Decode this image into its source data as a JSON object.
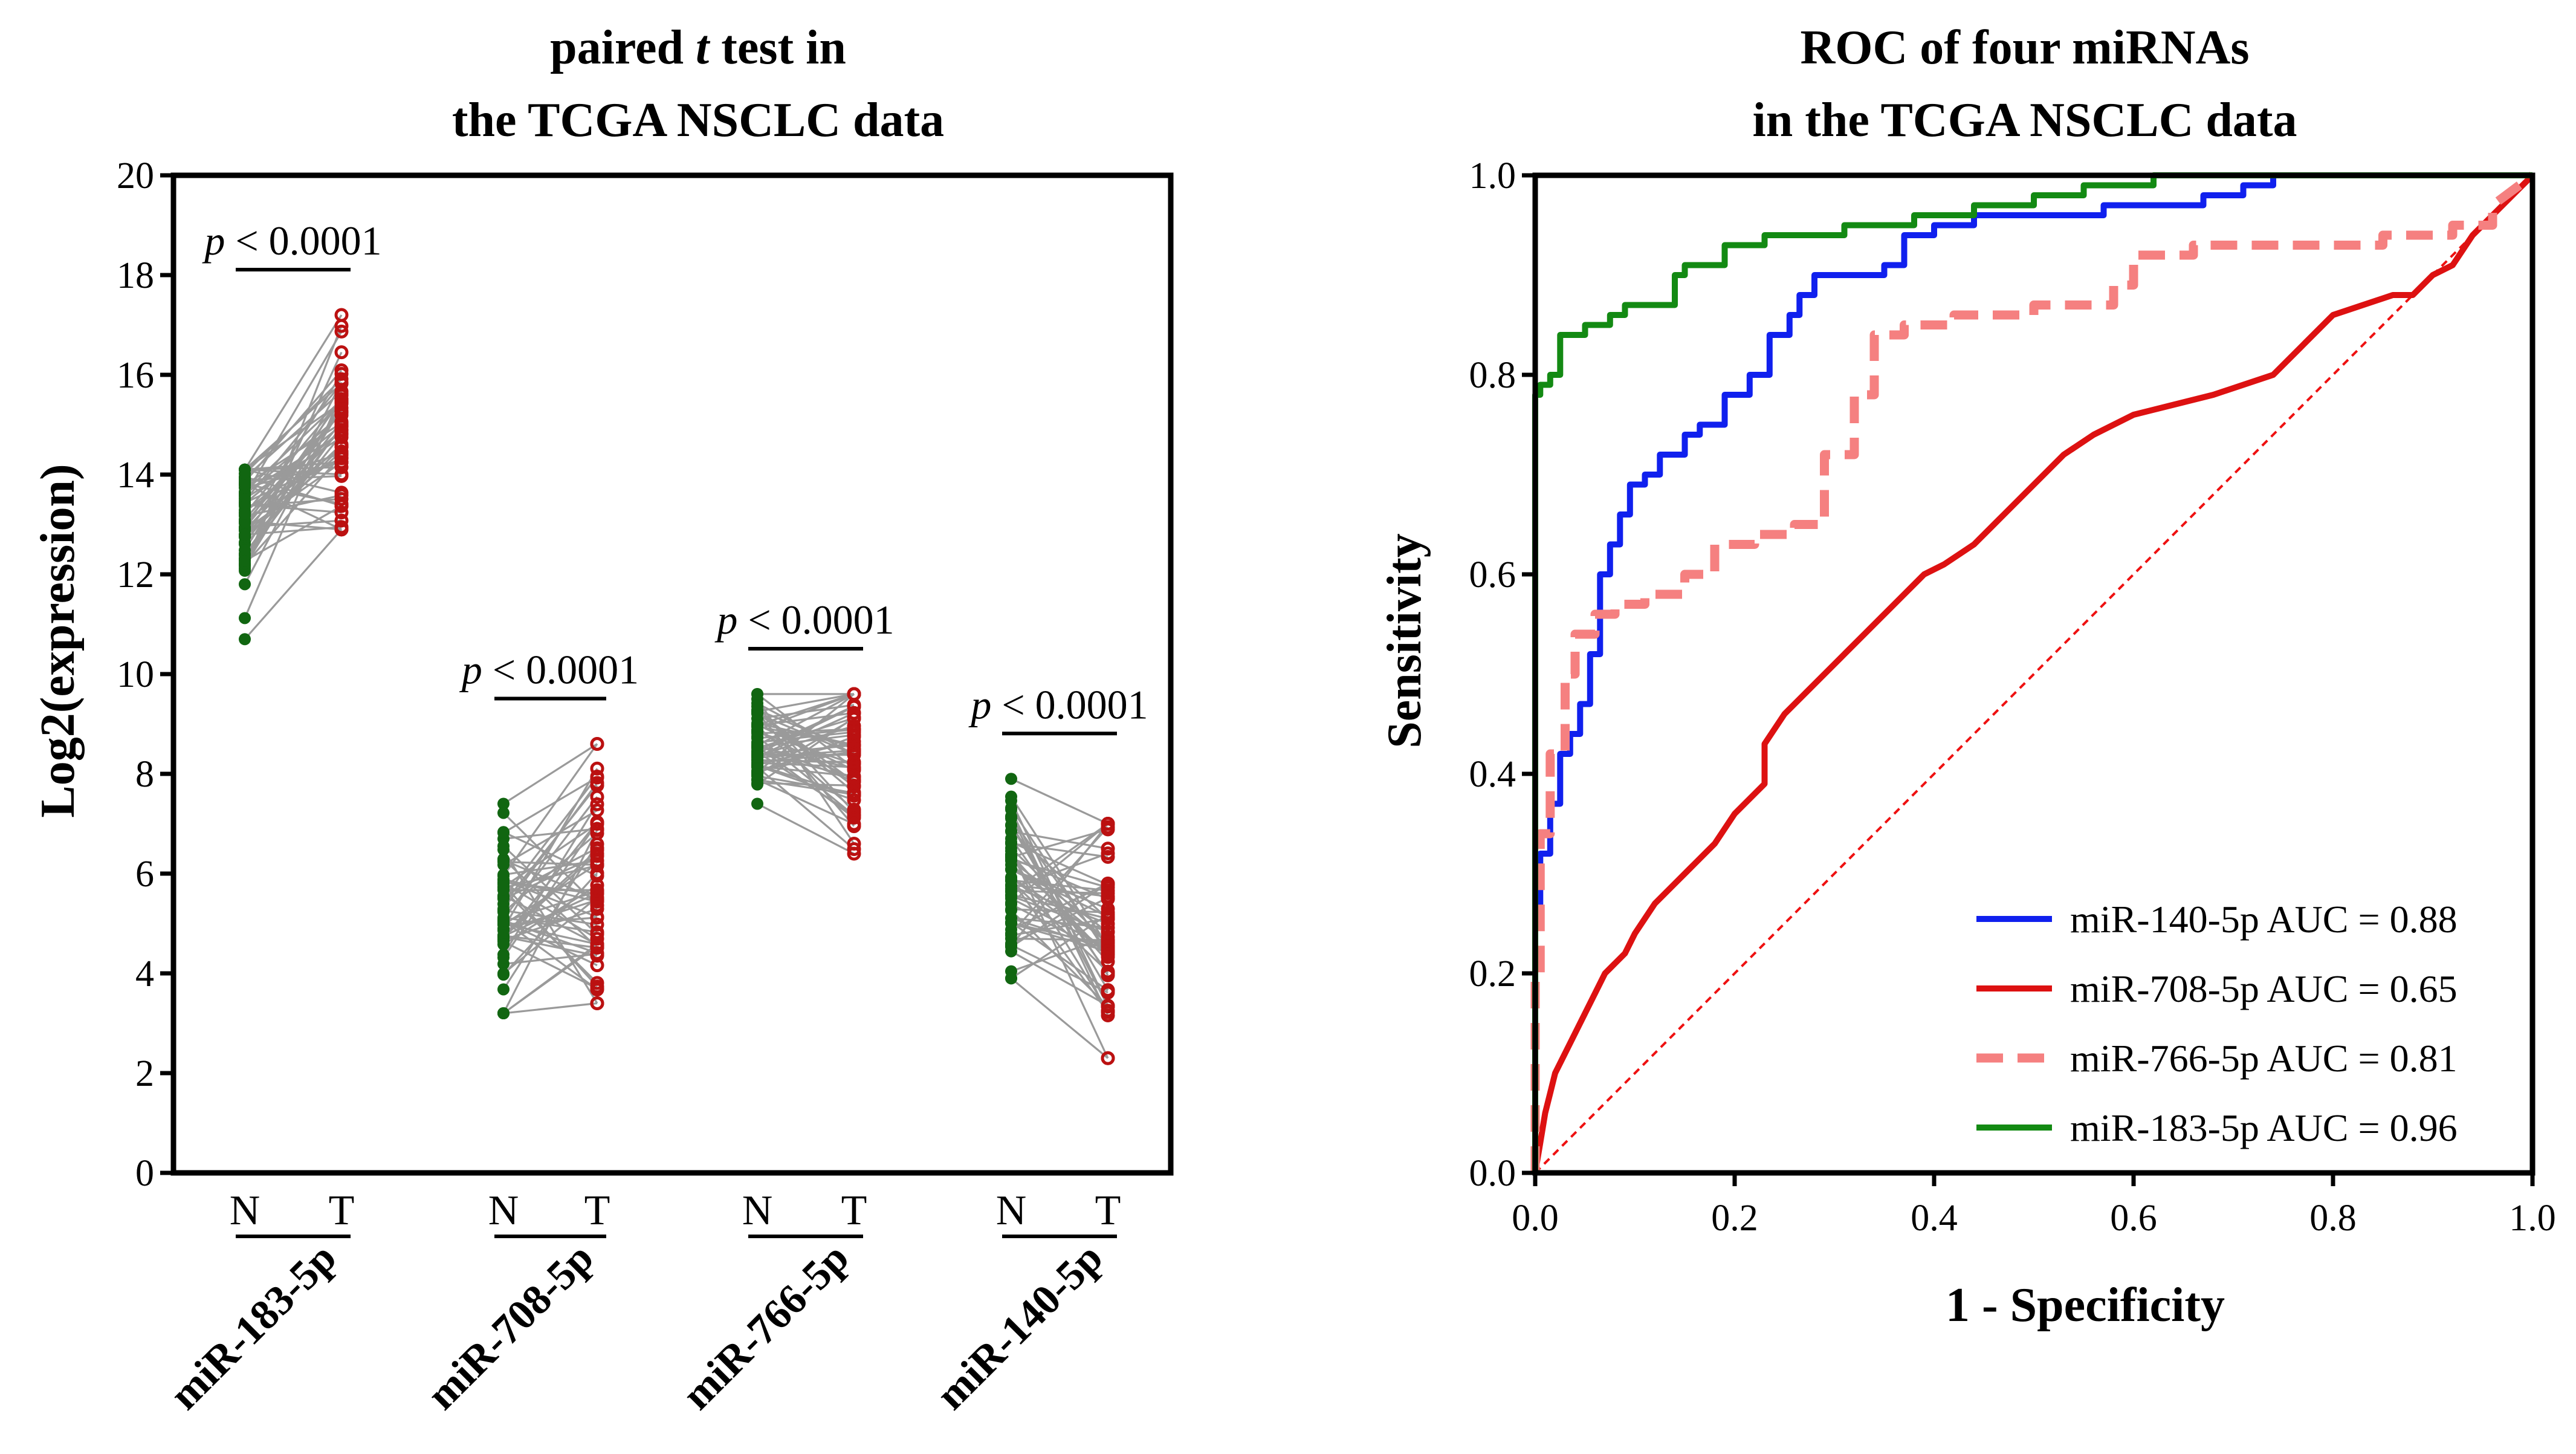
{
  "chart_data": [
    {
      "type": "scatter",
      "subtype": "paired-dot",
      "title_line1_prefix": "paired ",
      "title_line1_italic": "t",
      "title_line1_suffix": " test in",
      "title_line2": "the TCGA NSCLC data",
      "xlabel": "",
      "ylabel": "Log2(expression)",
      "ylim": [
        0,
        20
      ],
      "yticks": [
        "0",
        "2",
        "4",
        "6",
        "8",
        "10",
        "12",
        "14",
        "16",
        "18",
        "20"
      ],
      "normal_color": "#116611",
      "tumor_color": "#bb1111",
      "line_color": "#9a9a9a",
      "groups": [
        {
          "name": "miR-183-5p",
          "normal_label": "N",
          "tumor_label": "T",
          "p_label_italic": "p",
          "p_label_rest": " < 0.0001",
          "normal_range": [
            10.7,
            14.1
          ],
          "tumor_range": [
            12.9,
            17.2
          ],
          "normal_mean": 13.2,
          "tumor_mean": 14.7
        },
        {
          "name": "miR-708-5p",
          "normal_label": "N",
          "tumor_label": "T",
          "p_label_italic": "p",
          "p_label_rest": " < 0.0001",
          "normal_range": [
            3.2,
            7.4
          ],
          "tumor_range": [
            3.4,
            8.6
          ],
          "normal_mean": 5.2,
          "tumor_mean": 5.8
        },
        {
          "name": "miR-766-5p",
          "normal_label": "N",
          "tumor_label": "T",
          "p_label_italic": "p",
          "p_label_rest": " < 0.0001",
          "normal_range": [
            7.4,
            9.6
          ],
          "tumor_range": [
            6.4,
            9.6
          ],
          "normal_mean": 8.7,
          "tumor_mean": 8.2
        },
        {
          "name": "miR-140-5p",
          "normal_label": "N",
          "tumor_label": "T",
          "p_label_italic": "p",
          "p_label_rest": " < 0.0001",
          "normal_range": [
            3.9,
            7.9
          ],
          "tumor_range": [
            2.3,
            7.0
          ],
          "normal_mean": 5.9,
          "tumor_mean": 4.9
        }
      ]
    },
    {
      "type": "line",
      "title_line1": "ROC of four miRNAs",
      "title_line2": "in the TCGA NSCLC data",
      "xlabel": "1 - Specificity",
      "ylabel": "Sensitivity",
      "xlim": [
        0,
        1
      ],
      "ylim": [
        0,
        1
      ],
      "xticks": [
        "0.0",
        "0.2",
        "0.4",
        "0.6",
        "0.8",
        "1.0"
      ],
      "yticks": [
        "0.0",
        "0.2",
        "0.4",
        "0.6",
        "0.8",
        "1.0"
      ],
      "legend_position": "bottom-right",
      "series": [
        {
          "name": "miR-140-5p AUC = 0.88",
          "color": "#1020ee",
          "dashed": false,
          "x": [
            0,
            0,
            0.005,
            0.005,
            0.015,
            0.015,
            0.025,
            0.025,
            0.035,
            0.035,
            0.045,
            0.045,
            0.055,
            0.055,
            0.065,
            0.065,
            0.075,
            0.075,
            0.085,
            0.085,
            0.095,
            0.095,
            0.11,
            0.11,
            0.125,
            0.125,
            0.15,
            0.15,
            0.165,
            0.165,
            0.19,
            0.19,
            0.2,
            0.2,
            0.215,
            0.215,
            0.235,
            0.235,
            0.255,
            0.255,
            0.265,
            0.265,
            0.28,
            0.28,
            0.35,
            0.35,
            0.37,
            0.37,
            0.4,
            0.4,
            0.44,
            0.44,
            0.52,
            0.52,
            0.57,
            0.57,
            0.67,
            0.67,
            0.71,
            0.71,
            0.74,
            0.74,
            0.76,
            0.76,
            1.0
          ],
          "y": [
            0,
            0.26,
            0.26,
            0.32,
            0.32,
            0.37,
            0.37,
            0.42,
            0.42,
            0.44,
            0.44,
            0.47,
            0.47,
            0.52,
            0.52,
            0.6,
            0.6,
            0.63,
            0.63,
            0.66,
            0.66,
            0.69,
            0.69,
            0.7,
            0.7,
            0.72,
            0.72,
            0.74,
            0.74,
            0.75,
            0.75,
            0.78,
            0.78,
            0.78,
            0.78,
            0.8,
            0.8,
            0.84,
            0.84,
            0.86,
            0.86,
            0.88,
            0.88,
            0.9,
            0.9,
            0.91,
            0.91,
            0.94,
            0.94,
            0.95,
            0.95,
            0.96,
            0.96,
            0.96,
            0.96,
            0.97,
            0.97,
            0.98,
            0.98,
            0.99,
            0.99,
            1.0,
            1.0,
            1.0,
            1.0
          ]
        },
        {
          "name": "miR-708-5p AUC = 0.65",
          "color": "#dd1111",
          "dashed": false,
          "x": [
            0,
            0.005,
            0.01,
            0.015,
            0.02,
            0.03,
            0.04,
            0.05,
            0.06,
            0.07,
            0.08,
            0.09,
            0.1,
            0.12,
            0.14,
            0.16,
            0.18,
            0.2,
            0.22,
            0.23,
            0.23,
            0.25,
            0.27,
            0.29,
            0.31,
            0.33,
            0.35,
            0.37,
            0.39,
            0.41,
            0.44,
            0.47,
            0.5,
            0.53,
            0.56,
            0.6,
            0.64,
            0.68,
            0.71,
            0.74,
            0.77,
            0.8,
            0.83,
            0.86,
            0.88,
            0.9,
            0.92,
            0.94,
            0.96,
            0.98,
            1.0
          ],
          "y": [
            0,
            0.03,
            0.06,
            0.08,
            0.1,
            0.12,
            0.14,
            0.16,
            0.18,
            0.2,
            0.21,
            0.22,
            0.24,
            0.27,
            0.29,
            0.31,
            0.33,
            0.36,
            0.38,
            0.39,
            0.43,
            0.46,
            0.48,
            0.5,
            0.52,
            0.54,
            0.56,
            0.58,
            0.6,
            0.61,
            0.63,
            0.66,
            0.69,
            0.72,
            0.74,
            0.76,
            0.77,
            0.78,
            0.79,
            0.8,
            0.83,
            0.86,
            0.87,
            0.88,
            0.88,
            0.9,
            0.91,
            0.94,
            0.96,
            0.98,
            1.0
          ]
        },
        {
          "name": "miR-766-5p AUC = 0.81",
          "color": "#f58080",
          "dashed": true,
          "x": [
            0,
            0,
            0.005,
            0.005,
            0.015,
            0.015,
            0.03,
            0.03,
            0.04,
            0.04,
            0.06,
            0.06,
            0.08,
            0.08,
            0.11,
            0.11,
            0.15,
            0.15,
            0.18,
            0.18,
            0.22,
            0.22,
            0.26,
            0.26,
            0.29,
            0.29,
            0.32,
            0.32,
            0.34,
            0.34,
            0.37,
            0.37,
            0.42,
            0.42,
            0.5,
            0.5,
            0.58,
            0.58,
            0.6,
            0.6,
            0.66,
            0.66,
            0.75,
            0.75,
            0.85,
            0.85,
            0.92,
            0.92,
            0.96,
            0.96,
            1.0
          ],
          "y": [
            0,
            0.2,
            0.2,
            0.34,
            0.34,
            0.42,
            0.42,
            0.5,
            0.5,
            0.54,
            0.54,
            0.56,
            0.56,
            0.57,
            0.57,
            0.58,
            0.58,
            0.6,
            0.6,
            0.63,
            0.63,
            0.64,
            0.64,
            0.65,
            0.65,
            0.72,
            0.72,
            0.78,
            0.78,
            0.84,
            0.84,
            0.85,
            0.85,
            0.86,
            0.86,
            0.87,
            0.87,
            0.89,
            0.89,
            0.92,
            0.92,
            0.93,
            0.93,
            0.93,
            0.93,
            0.94,
            0.94,
            0.95,
            0.95,
            0.97,
            1.0
          ]
        },
        {
          "name": "miR-183-5p AUC = 0.96",
          "color": "#138a13",
          "dashed": false,
          "x": [
            0,
            0,
            0.005,
            0.005,
            0.015,
            0.015,
            0.025,
            0.025,
            0.05,
            0.05,
            0.075,
            0.075,
            0.09,
            0.09,
            0.14,
            0.14,
            0.15,
            0.15,
            0.19,
            0.19,
            0.23,
            0.23,
            0.31,
            0.31,
            0.38,
            0.38,
            0.44,
            0.44,
            0.5,
            0.5,
            0.55,
            0.55,
            0.62,
            0.62,
            0.68,
            0.68,
            1.0
          ],
          "y": [
            0,
            0.78,
            0.78,
            0.79,
            0.79,
            0.8,
            0.8,
            0.84,
            0.84,
            0.85,
            0.85,
            0.86,
            0.86,
            0.87,
            0.87,
            0.9,
            0.9,
            0.91,
            0.91,
            0.93,
            0.93,
            0.94,
            0.94,
            0.95,
            0.95,
            0.96,
            0.96,
            0.97,
            0.97,
            0.98,
            0.98,
            0.99,
            0.99,
            1.0,
            1.0,
            1.0,
            1.0
          ]
        }
      ],
      "reference_line": {
        "color": "#ee1111",
        "dashed": true,
        "x": [
          0,
          1
        ],
        "y": [
          0,
          1
        ]
      }
    }
  ]
}
